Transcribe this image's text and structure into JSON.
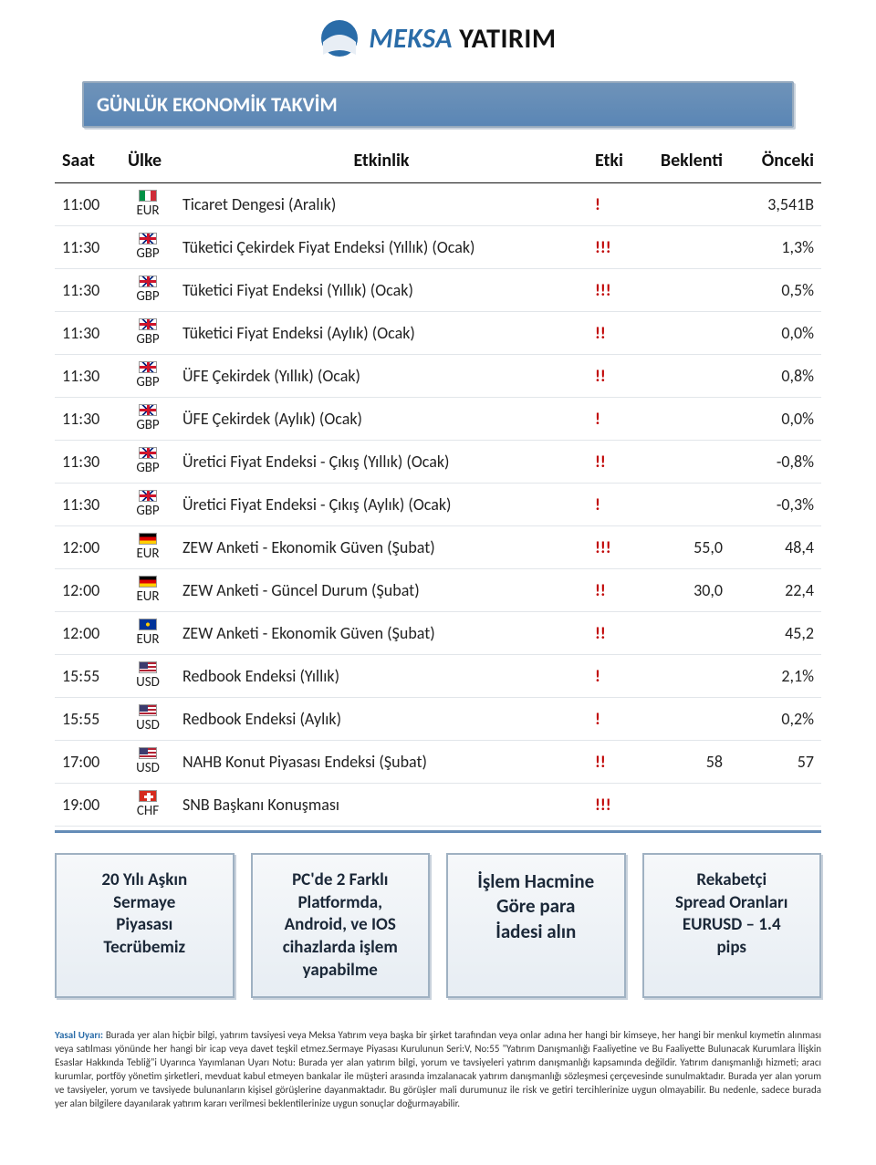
{
  "logo": {
    "brand_first": "MEKSA",
    "brand_second": "YATIRIM"
  },
  "title": "GÜNLÜK EKONOMİK TAKVİM",
  "headers": {
    "time": "Saat",
    "country": "Ülke",
    "event": "Etkinlik",
    "impact": "Etki",
    "forecast": "Beklenti",
    "previous": "Önceki"
  },
  "rows": [
    {
      "time": "11:00",
      "cur": "EUR",
      "flag": "ita",
      "event": "Ticaret Dengesi (Aralık)",
      "impact": "!",
      "forecast": "",
      "previous": "3,541B"
    },
    {
      "time": "11:30",
      "cur": "GBP",
      "flag": "gbp",
      "event": "Tüketici Çekirdek Fiyat Endeksi (Yıllık) (Ocak)",
      "impact": "!!!",
      "forecast": "",
      "previous": "1,3%"
    },
    {
      "time": "11:30",
      "cur": "GBP",
      "flag": "gbp",
      "event": "Tüketici Fiyat Endeksi (Yıllık) (Ocak)",
      "impact": "!!!",
      "forecast": "",
      "previous": "0,5%"
    },
    {
      "time": "11:30",
      "cur": "GBP",
      "flag": "gbp",
      "event": "Tüketici Fiyat Endeksi (Aylık) (Ocak)",
      "impact": "!!",
      "forecast": "",
      "previous": "0,0%"
    },
    {
      "time": "11:30",
      "cur": "GBP",
      "flag": "gbp",
      "event": "ÜFE Çekirdek (Yıllık) (Ocak)",
      "impact": "!!",
      "forecast": "",
      "previous": "0,8%"
    },
    {
      "time": "11:30",
      "cur": "GBP",
      "flag": "gbp",
      "event": "ÜFE Çekirdek (Aylık) (Ocak)",
      "impact": "!",
      "forecast": "",
      "previous": "0,0%"
    },
    {
      "time": "11:30",
      "cur": "GBP",
      "flag": "gbp",
      "event": "Üretici Fiyat Endeksi - Çıkış (Yıllık) (Ocak)",
      "impact": "!!",
      "forecast": "",
      "previous": "-0,8%"
    },
    {
      "time": "11:30",
      "cur": "GBP",
      "flag": "gbp",
      "event": "Üretici Fiyat Endeksi - Çıkış (Aylık) (Ocak)",
      "impact": "!",
      "forecast": "",
      "previous": "-0,3%"
    },
    {
      "time": "12:00",
      "cur": "EUR",
      "flag": "deu",
      "event": "ZEW Anketi - Ekonomik Güven (Şubat)",
      "impact": "!!!",
      "forecast": "55,0",
      "previous": "48,4"
    },
    {
      "time": "12:00",
      "cur": "EUR",
      "flag": "deu",
      "event": "ZEW Anketi - Güncel Durum (Şubat)",
      "impact": "!!",
      "forecast": "30,0",
      "previous": "22,4"
    },
    {
      "time": "12:00",
      "cur": "EUR",
      "flag": "eur",
      "event": "ZEW Anketi - Ekonomik Güven (Şubat)",
      "impact": "!!",
      "forecast": "",
      "previous": "45,2"
    },
    {
      "time": "15:55",
      "cur": "USD",
      "flag": "usd",
      "event": "Redbook Endeksi (Yıllık)",
      "impact": "!",
      "forecast": "",
      "previous": "2,1%"
    },
    {
      "time": "15:55",
      "cur": "USD",
      "flag": "usd",
      "event": "Redbook Endeksi (Aylık)",
      "impact": "!",
      "forecast": "",
      "previous": "0,2%"
    },
    {
      "time": "17:00",
      "cur": "USD",
      "flag": "usd",
      "event": "NAHB Konut Piyasası Endeksi (Şubat)",
      "impact": "!!",
      "forecast": "58",
      "previous": "57"
    },
    {
      "time": "19:00",
      "cur": "CHF",
      "flag": "chf",
      "event": "SNB Başkanı Konuşması",
      "impact": "!!!",
      "forecast": "",
      "previous": ""
    }
  ],
  "features": [
    {
      "lines": [
        "20 Yılı Aşkın",
        "Sermaye",
        "Piyasası",
        "Tecrübemiz"
      ],
      "highlight_first": true
    },
    {
      "lines": [
        "PC'de 2 Farklı",
        "Platformda,",
        "Android, ve IOS",
        "cihazlarda işlem",
        "yapabilme"
      ],
      "highlight_first": false
    },
    {
      "lines": [
        "İşlem Hacmine",
        "Göre para",
        "İadesi alın"
      ],
      "highlight_first": false,
      "big": true
    },
    {
      "lines": [
        "Rekabetçi",
        "Spread Oranları",
        "EURUSD – 1.4",
        "pips"
      ],
      "highlight_first": true
    }
  ],
  "disclaimer_lead": "Yasal Uyarı:",
  "disclaimer_body": "Burada yer alan hiçbir bilgi, yatırım tavsiyesi veya Meksa Yatırım veya başka bir şirket tarafından veya onlar adına her hangi bir kimseye, her hangi bir menkul kıymetin alınması veya satılması yönünde her hangi bir icap veya davet teşkil etmez.Sermaye Piyasası Kurulunun Seri:V, No:55 \"Yatırım Danışmanlığı Faaliyetine ve Bu Faaliyette Bulunacak Kurumlara İlişkin Esaslar Hakkında Tebliğ\"i Uyarınca Yayımlanan Uyarı Notu: Burada yer alan yatırım bilgi, yorum ve tavsiyeleri yatırım danışmanlığı kapsamında değildir. Yatırım danışmanlığı hizmeti; aracı kurumlar, portföy yönetim şirketleri, mevduat kabul etmeyen bankalar ile müşteri arasında imzalanacak yatırım danışmanlığı sözleşmesi çerçevesinde sunulmaktadır. Burada yer alan yorum ve tavsiyeler, yorum ve tavsiyede bulunanların kişisel görüşlerine dayanmaktadır. Bu görüşler mali durumunuz ile risk ve getiri tercihlerinize uygun olmayabilir. Bu nedenle, sadece burada yer alan bilgilere dayanılarak yatırım kararı verilmesi beklentilerinize uygun sonuçlar doğurmayabilir."
}
